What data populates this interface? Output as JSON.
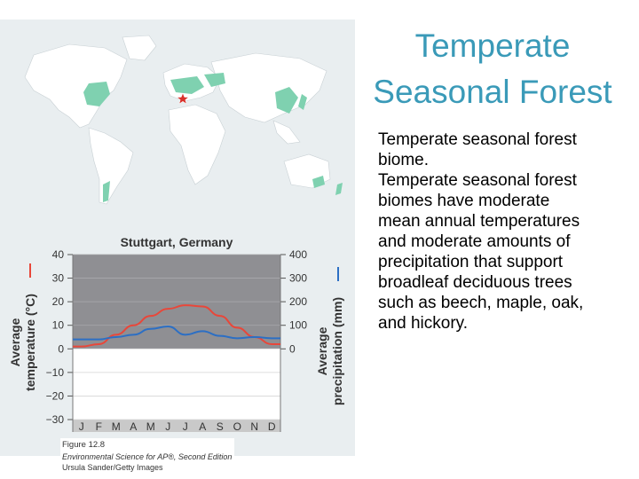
{
  "slide": {
    "title_lines": [
      "Temperate",
      "Seasonal Forest"
    ],
    "body_lines": [
      "Temperate seasonal forest",
      "biome.",
      "Temperate seasonal forest",
      "biomes have moderate",
      "mean annual temperatures",
      "and moderate amounts of",
      "precipitation that support",
      "broadleaf deciduous trees",
      "such as beech, maple, oak,",
      "and hickory."
    ]
  },
  "map": {
    "ocean_color": "#e9eef0",
    "land_color": "#ffffff",
    "biome_color": "#7fd1b0",
    "marker": "star-icon",
    "marker_color": "#d9312a"
  },
  "caption": {
    "figure": "Figure 12.8",
    "book": "Environmental Science for AP®, Second Edition",
    "credit": "Ursula Sander/Getty Images"
  },
  "chart_data": {
    "type": "line",
    "title": "Stuttgart, Germany",
    "xlabel": "Month",
    "categories": [
      "J",
      "F",
      "M",
      "A",
      "M",
      "J",
      "J",
      "A",
      "S",
      "O",
      "N",
      "D"
    ],
    "y_left": {
      "label_lines": [
        "Average",
        "temperature (°C)"
      ],
      "ticks": [
        40,
        30,
        20,
        10,
        0,
        -10,
        -20,
        -30
      ],
      "ylim": [
        -30,
        40
      ]
    },
    "y_right": {
      "label_lines": [
        "Average",
        "precipitation (mm)"
      ],
      "ticks": [
        400,
        300,
        200,
        100,
        0
      ],
      "ylim": [
        -300,
        400
      ]
    },
    "series": [
      {
        "axis": "left",
        "color": "#e8473a",
        "values": [
          1,
          2,
          6,
          10,
          14,
          17,
          18.5,
          18,
          14,
          9,
          5,
          2
        ]
      },
      {
        "axis": "right",
        "color": "#2c6fc4",
        "values": [
          40,
          40,
          50,
          60,
          85,
          95,
          60,
          75,
          55,
          45,
          50,
          45
        ]
      }
    ],
    "growing_season_shade": "#8f8f93",
    "plot_bg": "#ffffff",
    "month_strip_bg": "#c9c9c9",
    "grid": true
  }
}
